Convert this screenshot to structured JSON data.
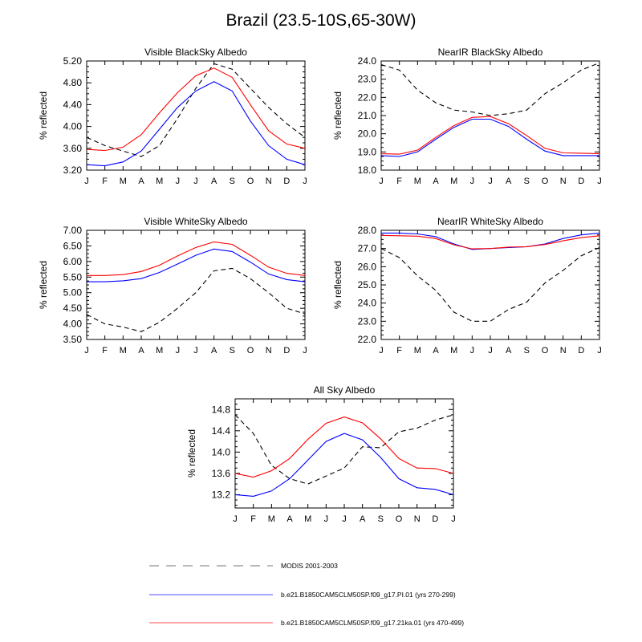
{
  "page_title": "Brazil (23.5-10S,65-30W)",
  "legend": [
    {
      "label": "MODIS 2001-2003",
      "color": "#000000",
      "dash": true
    },
    {
      "label": "b.e21.B1850CAM5CLM50SP.f09_g17.PI.01 (yrs 270-299)",
      "color": "#0000ff",
      "dash": false
    },
    {
      "label": "b.e21.B1850CAM5CLM50SP.f09_g17.21ka.01 (yrs 470-499)",
      "color": "#ff0000",
      "dash": false
    }
  ],
  "chart_data": [
    {
      "type": "line",
      "title": "Visible BlackSky Albedo",
      "ylabel": "% reflected",
      "categories": [
        "J",
        "F",
        "M",
        "A",
        "M",
        "J",
        "J",
        "A",
        "S",
        "O",
        "N",
        "D",
        "J"
      ],
      "ylim": [
        3.2,
        5.2
      ],
      "yticks": [
        "3.20",
        "3.60",
        "4.00",
        "4.40",
        "4.80",
        "5.20"
      ],
      "series": [
        {
          "name": "MODIS 2001-2003",
          "values": [
            3.8,
            3.65,
            3.55,
            3.45,
            3.65,
            4.15,
            4.7,
            5.15,
            5.05,
            4.7,
            4.35,
            4.05,
            3.8
          ]
        },
        {
          "name": "PI.01",
          "values": [
            3.3,
            3.28,
            3.35,
            3.55,
            3.95,
            4.35,
            4.65,
            4.82,
            4.65,
            4.1,
            3.65,
            3.4,
            3.3
          ]
        },
        {
          "name": "21ka.01",
          "values": [
            3.58,
            3.56,
            3.62,
            3.85,
            4.25,
            4.62,
            4.93,
            5.07,
            4.9,
            4.4,
            3.92,
            3.68,
            3.6
          ]
        }
      ]
    },
    {
      "type": "line",
      "title": "NearIR BlackSky Albedo",
      "ylabel": "% reflected",
      "categories": [
        "J",
        "F",
        "M",
        "A",
        "M",
        "J",
        "J",
        "A",
        "S",
        "O",
        "N",
        "D",
        "J"
      ],
      "ylim": [
        18.0,
        24.0
      ],
      "yticks": [
        "18.0",
        "19.0",
        "20.0",
        "21.0",
        "22.0",
        "23.0",
        "24.0"
      ],
      "series": [
        {
          "name": "MODIS 2001-2003",
          "values": [
            23.8,
            23.5,
            22.4,
            21.7,
            21.3,
            21.2,
            21.0,
            21.1,
            21.3,
            22.2,
            22.8,
            23.5,
            23.9
          ]
        },
        {
          "name": "PI.01",
          "values": [
            18.8,
            18.75,
            19.0,
            19.7,
            20.35,
            20.8,
            20.8,
            20.4,
            19.7,
            19.05,
            18.8,
            18.8,
            18.8
          ]
        },
        {
          "name": "21ka.01",
          "values": [
            18.9,
            18.88,
            19.1,
            19.8,
            20.45,
            20.9,
            20.95,
            20.55,
            19.9,
            19.2,
            18.95,
            18.93,
            18.9
          ]
        }
      ]
    },
    {
      "type": "line",
      "title": "Visible WhiteSky Albedo",
      "ylabel": "% reflected",
      "categories": [
        "J",
        "F",
        "M",
        "A",
        "M",
        "J",
        "J",
        "A",
        "S",
        "O",
        "N",
        "D",
        "J"
      ],
      "ylim": [
        3.5,
        7.0
      ],
      "yticks": [
        "3.50",
        "4.00",
        "4.50",
        "5.00",
        "5.50",
        "6.00",
        "6.50",
        "7.00"
      ],
      "series": [
        {
          "name": "MODIS 2001-2003",
          "values": [
            4.3,
            4.0,
            3.9,
            3.75,
            4.05,
            4.5,
            5.0,
            5.7,
            5.78,
            5.45,
            5.0,
            4.5,
            4.32
          ]
        },
        {
          "name": "PI.01",
          "values": [
            5.35,
            5.35,
            5.38,
            5.45,
            5.65,
            5.92,
            6.2,
            6.4,
            6.32,
            5.98,
            5.6,
            5.42,
            5.35
          ]
        },
        {
          "name": "21ka.01",
          "values": [
            5.55,
            5.55,
            5.58,
            5.68,
            5.88,
            6.18,
            6.45,
            6.63,
            6.55,
            6.2,
            5.82,
            5.62,
            5.55
          ]
        }
      ]
    },
    {
      "type": "line",
      "title": "NearIR WhiteSky Albedo",
      "ylabel": "% reflected",
      "categories": [
        "J",
        "F",
        "M",
        "A",
        "M",
        "J",
        "J",
        "A",
        "S",
        "O",
        "N",
        "D",
        "J"
      ],
      "ylim": [
        22.0,
        28.0
      ],
      "yticks": [
        "22.0",
        "23.0",
        "24.0",
        "25.0",
        "26.0",
        "27.0",
        "28.0"
      ],
      "series": [
        {
          "name": "MODIS 2001-2003",
          "values": [
            27.0,
            26.5,
            25.5,
            24.7,
            23.5,
            23.0,
            23.0,
            23.65,
            24.05,
            25.1,
            25.8,
            26.6,
            27.05
          ]
        },
        {
          "name": "PI.01",
          "values": [
            27.85,
            27.85,
            27.8,
            27.65,
            27.25,
            26.95,
            27.0,
            27.05,
            27.1,
            27.25,
            27.55,
            27.75,
            27.85
          ]
        },
        {
          "name": "21ka.01",
          "values": [
            27.72,
            27.7,
            27.68,
            27.55,
            27.2,
            26.98,
            27.0,
            27.08,
            27.1,
            27.22,
            27.42,
            27.6,
            27.7
          ]
        }
      ]
    },
    {
      "type": "line",
      "title": "All Sky Albedo",
      "ylabel": "% reflected",
      "categories": [
        "J",
        "F",
        "M",
        "A",
        "M",
        "J",
        "J",
        "A",
        "S",
        "O",
        "N",
        "D",
        "J"
      ],
      "ylim": [
        12.95,
        15.0
      ],
      "yticks": [
        "13.2",
        "13.6",
        "14.0",
        "14.4",
        "14.8"
      ],
      "series": [
        {
          "name": "MODIS 2001-2003",
          "values": [
            14.7,
            14.35,
            13.75,
            13.5,
            13.4,
            13.55,
            13.7,
            14.1,
            14.08,
            14.38,
            14.45,
            14.6,
            14.7
          ]
        },
        {
          "name": "PI.01",
          "values": [
            13.2,
            13.17,
            13.27,
            13.5,
            13.85,
            14.2,
            14.35,
            14.23,
            13.9,
            13.5,
            13.33,
            13.3,
            13.2
          ]
        },
        {
          "name": "21ka.01",
          "values": [
            13.6,
            13.53,
            13.65,
            13.88,
            14.24,
            14.54,
            14.66,
            14.55,
            14.25,
            13.88,
            13.7,
            13.69,
            13.6
          ]
        }
      ]
    }
  ]
}
